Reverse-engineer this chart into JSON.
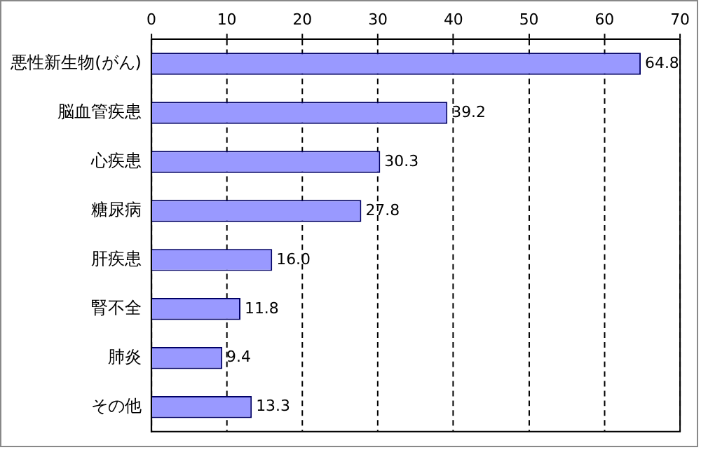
{
  "chart_data": {
    "type": "bar",
    "orientation": "horizontal",
    "categories": [
      "悪性新生物(がん)",
      "脳血管疾患",
      "心疾患",
      "糖尿病",
      "肝疾患",
      "腎不全",
      "肺炎",
      "その他"
    ],
    "values": [
      64.8,
      39.2,
      30.3,
      27.8,
      16.0,
      11.8,
      9.4,
      13.3
    ],
    "value_labels": [
      "64.8",
      "39.2",
      "30.3",
      "27.8",
      "16.0",
      "11.8",
      "9.4",
      "13.3"
    ],
    "color": "#9999ff",
    "xlim": [
      0,
      70
    ],
    "xticks": [
      0,
      10,
      20,
      30,
      40,
      50,
      60,
      70
    ],
    "grid": "x",
    "legend": false
  }
}
